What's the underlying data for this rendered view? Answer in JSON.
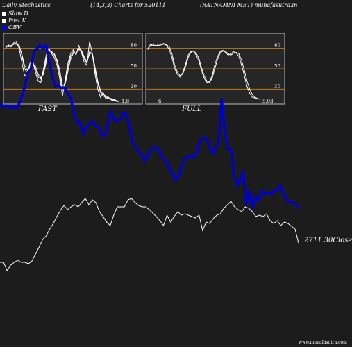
{
  "header": {
    "title": "Daily Stochastics",
    "params": "(14,3,3) Charts for 520111",
    "company": "(RATNAMNI MET) munafasutra.in"
  },
  "legend": [
    {
      "label": "Slow  D",
      "color": "#ffffff"
    },
    {
      "label": "Fast K",
      "color": "#ffffff"
    },
    {
      "label": "OBV",
      "color": "#0000ff"
    }
  ],
  "footer": "www.munafasutra.com",
  "chart_data": [
    {
      "type": "line",
      "name": "FAST",
      "ylim": [
        0,
        100
      ],
      "ticks": [
        "80",
        "50",
        "20"
      ],
      "last_value_label": "1.8",
      "series": [
        {
          "values": [
            82,
            84,
            83,
            86,
            88,
            85,
            70,
            50,
            45,
            55,
            60,
            50,
            38,
            35,
            45,
            65,
            78,
            74,
            70,
            60,
            42,
            18,
            30,
            52,
            68,
            75,
            72,
            80,
            76,
            65,
            58,
            75,
            72,
            48,
            28,
            15,
            10,
            8,
            6,
            5,
            4,
            2,
            1.8
          ]
        },
        {
          "values": [
            80,
            85,
            82,
            88,
            90,
            80,
            60,
            40,
            42,
            58,
            62,
            45,
            32,
            30,
            50,
            70,
            80,
            72,
            66,
            55,
            35,
            10,
            34,
            58,
            72,
            78,
            70,
            84,
            74,
            60,
            55,
            90,
            72,
            42,
            20,
            8,
            15,
            5,
            8,
            4,
            3,
            2,
            1.8
          ]
        },
        {
          "values": [
            84,
            82,
            84,
            86,
            86,
            83,
            72,
            55,
            48,
            52,
            58,
            54,
            42,
            37,
            42,
            60,
            76,
            75,
            72,
            63,
            48,
            25,
            28,
            46,
            64,
            73,
            73,
            78,
            77,
            68,
            60,
            72,
            73,
            52,
            32,
            18,
            12,
            10,
            7,
            6,
            5,
            3,
            2
          ]
        }
      ]
    },
    {
      "type": "line",
      "name": "FULL",
      "ylim": [
        0,
        100
      ],
      "ticks": [
        "80",
        "50",
        "20"
      ],
      "first_value_label": "6",
      "last_value_label": "5.03",
      "series": [
        {
          "values": [
            80,
            84,
            85,
            84,
            84,
            85,
            86,
            85,
            82,
            72,
            55,
            45,
            40,
            42,
            52,
            66,
            74,
            76,
            73,
            66,
            52,
            40,
            32,
            30,
            36,
            50,
            64,
            73,
            76,
            75,
            72,
            70,
            73,
            74,
            72,
            62,
            48,
            32,
            20,
            12,
            8,
            6,
            5.03
          ]
        },
        {
          "values": [
            78,
            86,
            84,
            83,
            86,
            86,
            87,
            84,
            78,
            66,
            50,
            42,
            38,
            44,
            56,
            70,
            75,
            76,
            70,
            62,
            48,
            36,
            30,
            31,
            40,
            56,
            68,
            75,
            77,
            74,
            70,
            72,
            75,
            73,
            68,
            55,
            40,
            24,
            14,
            8,
            7,
            6,
            5.03
          ]
        }
      ]
    },
    {
      "type": "line",
      "name": "OBV and Close",
      "close_label": "2711.30Close",
      "series": [
        {
          "values": [
            235,
            238,
            237,
            240,
            238,
            241,
            237,
            225,
            210,
            190,
            185,
            160,
            155,
            150,
            155,
            150,
            175,
            195,
            210,
            208,
            212,
            211,
            220,
            227,
            250,
            262,
            262,
            278,
            268,
            263,
            260,
            267,
            269,
            280,
            280,
            262,
            245,
            258,
            260,
            257,
            247,
            250,
            268,
            290,
            296,
            305,
            308,
            318,
            309,
            300,
            298,
            299,
            305,
            314,
            318,
            329,
            335,
            345,
            338,
            325,
            312,
            312,
            310,
            312,
            302,
            287,
            283,
            285,
            295,
            307,
            298,
            290,
            228,
            275,
            300,
            300,
            338,
            352,
            345,
            332,
            379,
            360,
            385,
            368,
            374,
            360,
            365,
            362,
            365,
            360,
            358,
            352,
            365,
            372,
            377,
            375,
            380,
            385
          ]
        },
        {
          "values": [
            378,
            378,
            390,
            382,
            378,
            375,
            378,
            378,
            380,
            376,
            366,
            356,
            345,
            340,
            330,
            322,
            312,
            303,
            296,
            302,
            298,
            295,
            298,
            292,
            286,
            295,
            288,
            292,
            305,
            312,
            320,
            325,
            310,
            298,
            298,
            298,
            288,
            286,
            292,
            296,
            298,
            298,
            302,
            307,
            312,
            318,
            325,
            310,
            320,
            312,
            305,
            310,
            308,
            310,
            312,
            314,
            310,
            332,
            320,
            322,
            315,
            310,
            308,
            300,
            295,
            290,
            298,
            302,
            305,
            298,
            300,
            305,
            312,
            310,
            312,
            308,
            318,
            322,
            318,
            325,
            320,
            322,
            326,
            330,
            350
          ]
        }
      ]
    }
  ]
}
